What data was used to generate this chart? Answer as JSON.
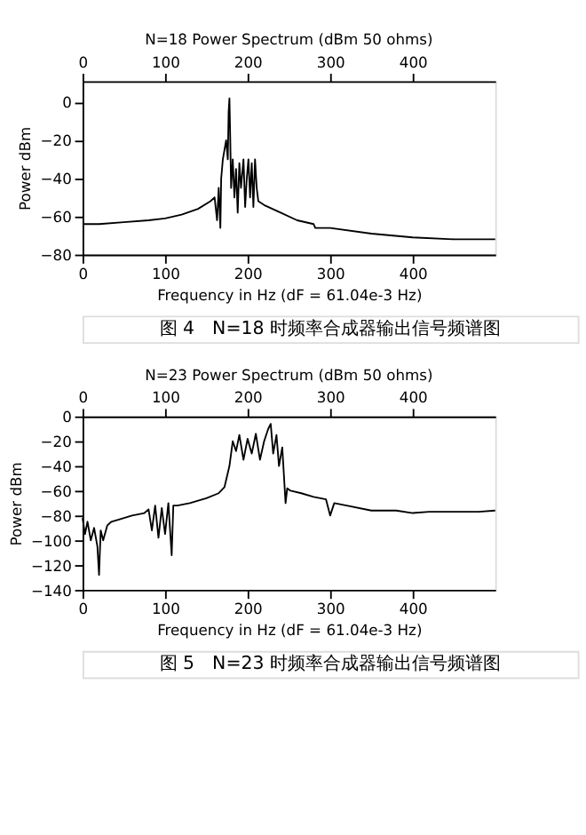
{
  "chart_data": [
    {
      "type": "line",
      "title": "N=18 Power Spectrum (dBm 50 ohms)",
      "xlabel": "Frequency in Hz (dF = 61.04e-3 Hz)",
      "ylabel": "Power dBm",
      "color": "#000000",
      "x": [
        0,
        20,
        50,
        80,
        100,
        120,
        140,
        155,
        160,
        163,
        165,
        167,
        168,
        170,
        172,
        174,
        176,
        177,
        178,
        179,
        180,
        182,
        184,
        186,
        188,
        190,
        192,
        195,
        197,
        199,
        201,
        203,
        205,
        207,
        209,
        211,
        213,
        220,
        240,
        260,
        280,
        282,
        300,
        350,
        400,
        450,
        500
      ],
      "values": [
        -64,
        -64,
        -63,
        -62,
        -61,
        -59,
        -56,
        -52,
        -50,
        -62,
        -45,
        -66,
        -40,
        -30,
        -25,
        -20,
        -30,
        -5,
        2,
        -20,
        -45,
        -30,
        -50,
        -35,
        -58,
        -32,
        -45,
        -30,
        -55,
        -40,
        -30,
        -50,
        -32,
        -55,
        -30,
        -45,
        -52,
        -54,
        -58,
        -62,
        -64,
        -66,
        -66,
        -69,
        -71,
        -72,
        -72
      ],
      "xlim": [
        0,
        500
      ],
      "xticks": [
        0,
        100,
        200,
        300,
        400
      ],
      "x2lim": [
        0,
        500
      ],
      "x2ticks": [
        0,
        100,
        200,
        300,
        400
      ],
      "ylim": [
        -80,
        11
      ],
      "yticks": [
        0,
        -20,
        -40,
        -60,
        -80
      ],
      "grid": false,
      "annotations": [
        "图 4　N=18 时频率合成器输出信号频谱图"
      ]
    },
    {
      "type": "line",
      "title": "N=23 Power Spectrum (dBm 50 ohms)",
      "xlabel": "Frequency in Hz (dF = 61.04e-3 Hz)",
      "ylabel": "Power dBm",
      "color": "#000000",
      "x": [
        0,
        3,
        6,
        10,
        14,
        18,
        20,
        22,
        25,
        30,
        35,
        45,
        60,
        75,
        80,
        84,
        88,
        92,
        96,
        100,
        104,
        108,
        110,
        115,
        130,
        150,
        165,
        172,
        178,
        182,
        186,
        190,
        195,
        200,
        205,
        210,
        215,
        220,
        225,
        228,
        231,
        235,
        238,
        242,
        246,
        248,
        252,
        265,
        280,
        295,
        300,
        305,
        320,
        350,
        380,
        400,
        420,
        450,
        480,
        500
      ],
      "values": [
        -82,
        -95,
        -85,
        -100,
        -90,
        -105,
        -128,
        -92,
        -100,
        -88,
        -85,
        -83,
        -80,
        -78,
        -75,
        -92,
        -72,
        -98,
        -74,
        -95,
        -70,
        -112,
        -72,
        -72,
        -70,
        -66,
        -62,
        -57,
        -40,
        -20,
        -28,
        -15,
        -35,
        -18,
        -30,
        -14,
        -35,
        -20,
        -10,
        -6,
        -30,
        -15,
        -40,
        -25,
        -70,
        -58,
        -60,
        -62,
        -65,
        -67,
        -80,
        -70,
        -72,
        -76,
        -76,
        -78,
        -77,
        -77,
        -77,
        -76
      ],
      "xlim": [
        0,
        500
      ],
      "xticks": [
        0,
        100,
        200,
        300,
        400
      ],
      "x2lim": [
        0,
        500
      ],
      "x2ticks": [
        0,
        100,
        200,
        300,
        400
      ],
      "ylim": [
        -140,
        0
      ],
      "yticks": [
        0,
        -20,
        -40,
        -60,
        -80,
        -100,
        -120,
        -140
      ],
      "grid": false,
      "annotations": [
        "图 5　N=23 时频率合成器输出信号频谱图"
      ]
    }
  ]
}
